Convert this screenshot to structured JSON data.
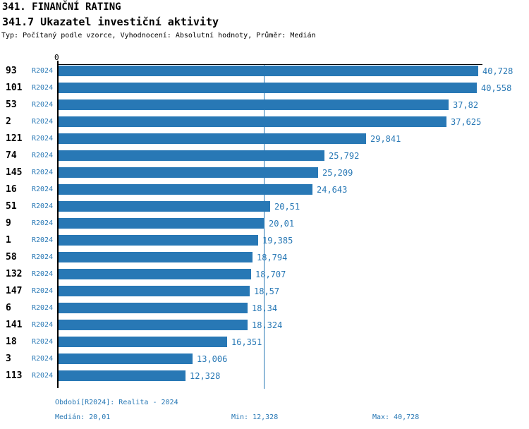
{
  "header": {
    "title": "341. FINANČNÍ RATING",
    "subtitle": "341.7 Ukazatel investiční aktivity",
    "meta": "Typ: Počítaný podle vzorce, Vyhodnocení: Absolutní hodnoty, Průměr: Medián"
  },
  "chart_data": {
    "type": "bar",
    "orientation": "horizontal",
    "title": "341.7 Ukazatel investiční aktivity",
    "axis": {
      "zero_label": "0",
      "min": 0,
      "max_value": 40.728,
      "grid": false
    },
    "median_value": 20.01,
    "min_value": 12.328,
    "max_value": 40.728,
    "categories": [
      "93",
      "101",
      "53",
      "2",
      "121",
      "74",
      "145",
      "16",
      "51",
      "9",
      "1",
      "58",
      "132",
      "147",
      "6",
      "141",
      "18",
      "3",
      "113"
    ],
    "rows": [
      {
        "rank": "93",
        "period": "R2024",
        "value": 40.728,
        "value_label": "40,728"
      },
      {
        "rank": "101",
        "period": "R2024",
        "value": 40.558,
        "value_label": "40,558"
      },
      {
        "rank": "53",
        "period": "R2024",
        "value": 37.82,
        "value_label": "37,82"
      },
      {
        "rank": "2",
        "period": "R2024",
        "value": 37.625,
        "value_label": "37,625"
      },
      {
        "rank": "121",
        "period": "R2024",
        "value": 29.841,
        "value_label": "29,841"
      },
      {
        "rank": "74",
        "period": "R2024",
        "value": 25.792,
        "value_label": "25,792"
      },
      {
        "rank": "145",
        "period": "R2024",
        "value": 25.209,
        "value_label": "25,209"
      },
      {
        "rank": "16",
        "period": "R2024",
        "value": 24.643,
        "value_label": "24,643"
      },
      {
        "rank": "51",
        "period": "R2024",
        "value": 20.51,
        "value_label": "20,51"
      },
      {
        "rank": "9",
        "period": "R2024",
        "value": 20.01,
        "value_label": "20,01"
      },
      {
        "rank": "1",
        "period": "R2024",
        "value": 19.385,
        "value_label": "19,385"
      },
      {
        "rank": "58",
        "period": "R2024",
        "value": 18.794,
        "value_label": "18,794"
      },
      {
        "rank": "132",
        "period": "R2024",
        "value": 18.707,
        "value_label": "18,707"
      },
      {
        "rank": "147",
        "period": "R2024",
        "value": 18.57,
        "value_label": "18,57"
      },
      {
        "rank": "6",
        "period": "R2024",
        "value": 18.34,
        "value_label": "18,34"
      },
      {
        "rank": "141",
        "period": "R2024",
        "value": 18.324,
        "value_label": "18,324"
      },
      {
        "rank": "18",
        "period": "R2024",
        "value": 16.351,
        "value_label": "16,351"
      },
      {
        "rank": "3",
        "period": "R2024",
        "value": 13.006,
        "value_label": "13,006"
      },
      {
        "rank": "113",
        "period": "R2024",
        "value": 12.328,
        "value_label": "12,328"
      }
    ],
    "colors": {
      "bar": "#2878b5",
      "median_line": "#2878b5",
      "axis": "#000000",
      "text_blue": "#2878b5",
      "text_black": "#000000"
    },
    "legend_position": "none"
  },
  "footer": {
    "period_line": "Období[R2024]: Realita - 2024",
    "median": "Medián: 20,01",
    "min": "Min: 12,328",
    "max": "Max: 40,728"
  }
}
